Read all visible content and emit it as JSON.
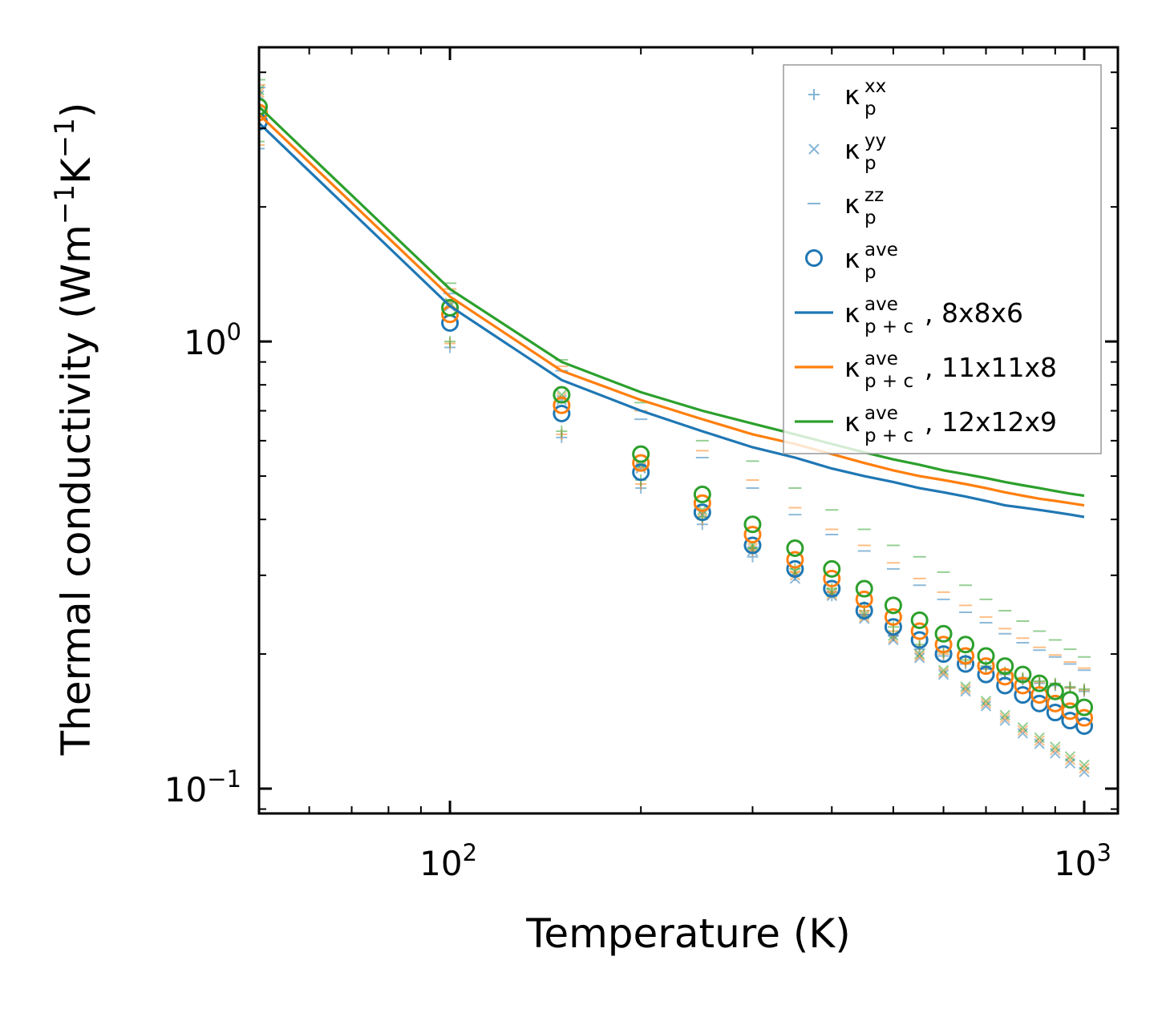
{
  "chart_data": {
    "type": "scatter",
    "x_scale": "log",
    "y_scale": "log",
    "xlabel": "Temperature (K)",
    "ylabel": "Thermal conductivity (Wm",
    "ylabel_unit_parts": [
      "Wm",
      "−1",
      "K",
      "−1",
      ")"
    ],
    "xlim": [
      50,
      1130
    ],
    "ylim": [
      0.088,
      4.55
    ],
    "x_ticks": [
      {
        "value": 100,
        "base": "10",
        "exp": "2"
      },
      {
        "value": 1000,
        "base": "10",
        "exp": "3"
      }
    ],
    "y_ticks": [
      {
        "value": 0.1,
        "base": "10",
        "exp": "−1"
      },
      {
        "value": 1.0,
        "base": "10",
        "exp": "0"
      }
    ],
    "x": [
      50,
      100,
      150,
      200,
      250,
      300,
      350,
      400,
      450,
      500,
      550,
      600,
      650,
      700,
      750,
      800,
      850,
      900,
      950,
      1000
    ],
    "series": [
      {
        "name": "κxx 8x8x6",
        "kind": "plus",
        "color": "#1f77b4",
        "values": [
          2.7,
          0.97,
          0.61,
          0.47,
          0.39,
          0.33,
          0.3,
          0.27,
          0.245,
          0.22,
          0.205,
          0.198,
          0.19,
          0.185,
          0.18,
          0.175,
          0.172,
          0.17,
          0.168,
          0.165
        ]
      },
      {
        "name": "κxx 11x11x8",
        "kind": "plus",
        "color": "#ff7f0e",
        "values": [
          2.75,
          0.99,
          0.62,
          0.48,
          0.4,
          0.34,
          0.305,
          0.275,
          0.25,
          0.225,
          0.208,
          0.2,
          0.192,
          0.186,
          0.181,
          0.176,
          0.173,
          0.171,
          0.168,
          0.166
        ]
      },
      {
        "name": "κxx 12x12x9",
        "kind": "plus",
        "color": "#2ca02c",
        "values": [
          2.8,
          1.0,
          0.63,
          0.49,
          0.405,
          0.345,
          0.31,
          0.28,
          0.255,
          0.23,
          0.21,
          0.202,
          0.194,
          0.188,
          0.182,
          0.177,
          0.174,
          0.172,
          0.169,
          0.167
        ]
      },
      {
        "name": "κyy 8x8x6",
        "kind": "cross",
        "color": "#1f77b4",
        "values": [
          3.55,
          1.2,
          0.74,
          0.52,
          0.41,
          0.34,
          0.295,
          0.27,
          0.24,
          0.215,
          0.196,
          0.18,
          0.165,
          0.153,
          0.142,
          0.133,
          0.126,
          0.12,
          0.114,
          0.109
        ]
      },
      {
        "name": "κyy 11x11x8",
        "kind": "cross",
        "color": "#ff7f0e",
        "values": [
          3.6,
          1.21,
          0.75,
          0.525,
          0.415,
          0.345,
          0.3,
          0.272,
          0.242,
          0.217,
          0.198,
          0.182,
          0.167,
          0.155,
          0.144,
          0.135,
          0.128,
          0.122,
          0.116,
          0.111
        ]
      },
      {
        "name": "κyy 12x12x9",
        "kind": "cross",
        "color": "#2ca02c",
        "values": [
          3.65,
          1.22,
          0.76,
          0.53,
          0.42,
          0.35,
          0.305,
          0.275,
          0.245,
          0.22,
          0.2,
          0.184,
          0.169,
          0.157,
          0.146,
          0.137,
          0.13,
          0.124,
          0.118,
          0.113
        ]
      },
      {
        "name": "κzz 8x8x6",
        "kind": "dash",
        "color": "#1f77b4",
        "values": [
          3.7,
          1.28,
          0.86,
          0.67,
          0.55,
          0.47,
          0.41,
          0.37,
          0.34,
          0.31,
          0.285,
          0.265,
          0.248,
          0.235,
          0.222,
          0.212,
          0.204,
          0.197,
          0.19,
          0.184
        ]
      },
      {
        "name": "κzz 11x11x8",
        "kind": "dash",
        "color": "#ff7f0e",
        "values": [
          3.75,
          1.31,
          0.88,
          0.7,
          0.57,
          0.49,
          0.425,
          0.38,
          0.35,
          0.32,
          0.295,
          0.275,
          0.257,
          0.242,
          0.228,
          0.217,
          0.207,
          0.199,
          0.192,
          0.186
        ]
      },
      {
        "name": "κzz 12x12x9",
        "kind": "dash",
        "color": "#2ca02c",
        "values": [
          3.85,
          1.35,
          0.91,
          0.73,
          0.6,
          0.54,
          0.47,
          0.42,
          0.38,
          0.35,
          0.33,
          0.305,
          0.285,
          0.265,
          0.25,
          0.237,
          0.225,
          0.215,
          0.205,
          0.197
        ]
      },
      {
        "name": "κave 8x8x6",
        "kind": "circle",
        "color": "#1f77b4",
        "values": [
          3.1,
          1.1,
          0.69,
          0.51,
          0.415,
          0.35,
          0.31,
          0.28,
          0.25,
          0.23,
          0.215,
          0.2,
          0.19,
          0.18,
          0.17,
          0.162,
          0.155,
          0.148,
          0.142,
          0.138
        ]
      },
      {
        "name": "κave 11x11x8",
        "kind": "circle",
        "color": "#ff7f0e",
        "values": [
          3.25,
          1.15,
          0.72,
          0.535,
          0.435,
          0.37,
          0.325,
          0.295,
          0.265,
          0.242,
          0.225,
          0.21,
          0.198,
          0.188,
          0.178,
          0.17,
          0.162,
          0.155,
          0.149,
          0.144
        ]
      },
      {
        "name": "κave 12x12x9",
        "kind": "circle",
        "color": "#2ca02c",
        "values": [
          3.35,
          1.19,
          0.76,
          0.56,
          0.455,
          0.39,
          0.345,
          0.31,
          0.28,
          0.257,
          0.238,
          0.222,
          0.21,
          0.198,
          0.188,
          0.18,
          0.172,
          0.165,
          0.158,
          0.152
        ]
      },
      {
        "name": "κp+c ave 8x8x6",
        "kind": "line",
        "color": "#1f77b4",
        "values": [
          3.08,
          1.2,
          0.82,
          0.7,
          0.63,
          0.58,
          0.55,
          0.52,
          0.5,
          0.485,
          0.47,
          0.46,
          0.45,
          0.44,
          0.43,
          0.425,
          0.42,
          0.415,
          0.41,
          0.405
        ]
      },
      {
        "name": "κp+c ave 11x11x8",
        "kind": "line",
        "color": "#ff7f0e",
        "values": [
          3.22,
          1.26,
          0.86,
          0.74,
          0.67,
          0.62,
          0.59,
          0.56,
          0.535,
          0.515,
          0.5,
          0.49,
          0.48,
          0.47,
          0.46,
          0.452,
          0.445,
          0.44,
          0.435,
          0.43
        ]
      },
      {
        "name": "κp+c ave 12x12x9",
        "kind": "line",
        "color": "#2ca02c",
        "values": [
          3.35,
          1.31,
          0.9,
          0.77,
          0.7,
          0.655,
          0.62,
          0.59,
          0.565,
          0.545,
          0.53,
          0.515,
          0.505,
          0.495,
          0.485,
          0.477,
          0.47,
          0.463,
          0.457,
          0.452
        ]
      }
    ],
    "legend": {
      "placement": "top-right",
      "entries": [
        {
          "marker": "plus",
          "color": "#1f77b4",
          "symbol": "κ",
          "sub": "p",
          "sup": "xx",
          "suffix": ""
        },
        {
          "marker": "cross",
          "color": "#1f77b4",
          "symbol": "κ",
          "sub": "p",
          "sup": "yy",
          "suffix": ""
        },
        {
          "marker": "dash",
          "color": "#1f77b4",
          "symbol": "κ",
          "sub": "p",
          "sup": "zz",
          "suffix": ""
        },
        {
          "marker": "circle",
          "color": "#1f77b4",
          "symbol": "κ",
          "sub": "p",
          "sup": "ave",
          "suffix": ""
        },
        {
          "marker": "line",
          "color": "#1f77b4",
          "symbol": "κ",
          "sub": "p + c",
          "sup": "ave",
          "suffix": ", 8x8x6"
        },
        {
          "marker": "line",
          "color": "#ff7f0e",
          "symbol": "κ",
          "sub": "p + c",
          "sup": "ave",
          "suffix": ", 11x11x8"
        },
        {
          "marker": "line",
          "color": "#2ca02c",
          "symbol": "κ",
          "sub": "p + c",
          "sup": "ave",
          "suffix": ", 12x12x9"
        }
      ]
    }
  }
}
